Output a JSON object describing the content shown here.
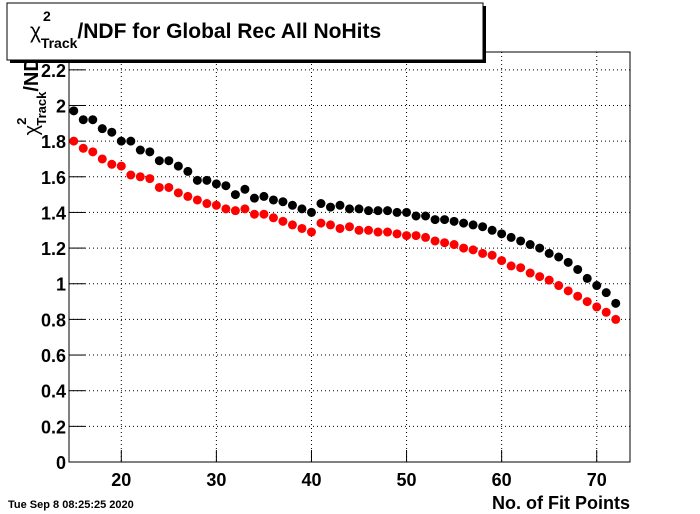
{
  "chart_data": {
    "type": "scatter",
    "title": {
      "symbol": "χ",
      "sup": "2",
      "sub": "Track",
      "text": "/NDF for Global Rec All NoHits"
    },
    "y_label": {
      "symbol": "χ",
      "sup": "2",
      "sub": "Track",
      "text": "/NDF"
    },
    "x_label": "No. of Fit Points",
    "timestamp": "Tue Sep  8 08:25:25 2020",
    "x": [
      15,
      16,
      17,
      18,
      19,
      20,
      21,
      22,
      23,
      24,
      25,
      26,
      27,
      28,
      29,
      30,
      31,
      32,
      33,
      34,
      35,
      36,
      37,
      38,
      39,
      40,
      41,
      42,
      43,
      44,
      45,
      46,
      47,
      48,
      49,
      50,
      51,
      52,
      53,
      54,
      55,
      56,
      57,
      58,
      59,
      60,
      61,
      62,
      63,
      64,
      65,
      66,
      67,
      68,
      69,
      70,
      71,
      72
    ],
    "series": [
      {
        "color": "#000000",
        "values": [
          1.97,
          1.92,
          1.92,
          1.87,
          1.85,
          1.8,
          1.8,
          1.75,
          1.74,
          1.69,
          1.69,
          1.66,
          1.63,
          1.58,
          1.58,
          1.56,
          1.55,
          1.5,
          1.53,
          1.48,
          1.49,
          1.47,
          1.46,
          1.44,
          1.42,
          1.4,
          1.45,
          1.43,
          1.44,
          1.42,
          1.42,
          1.41,
          1.41,
          1.41,
          1.4,
          1.4,
          1.38,
          1.38,
          1.36,
          1.36,
          1.35,
          1.34,
          1.33,
          1.32,
          1.3,
          1.28,
          1.26,
          1.24,
          1.22,
          1.2,
          1.17,
          1.15,
          1.12,
          1.08,
          1.03,
          0.99,
          0.95,
          0.89
        ]
      },
      {
        "color": "#ff0000",
        "values": [
          1.8,
          1.76,
          1.74,
          1.7,
          1.67,
          1.66,
          1.61,
          1.6,
          1.59,
          1.54,
          1.54,
          1.51,
          1.49,
          1.47,
          1.45,
          1.44,
          1.42,
          1.41,
          1.42,
          1.39,
          1.39,
          1.37,
          1.35,
          1.33,
          1.31,
          1.29,
          1.34,
          1.33,
          1.31,
          1.32,
          1.3,
          1.3,
          1.29,
          1.29,
          1.28,
          1.27,
          1.27,
          1.26,
          1.24,
          1.23,
          1.22,
          1.2,
          1.19,
          1.17,
          1.16,
          1.13,
          1.1,
          1.09,
          1.06,
          1.04,
          1.02,
          0.99,
          0.96,
          0.93,
          0.9,
          0.87,
          0.84,
          0.8
        ]
      }
    ],
    "xlim": [
      14.5,
      73.5
    ],
    "ylim": [
      0,
      2.3
    ],
    "xticks": [
      20,
      30,
      40,
      50,
      60,
      70
    ],
    "yticks": [
      0,
      0.2,
      0.4,
      0.6,
      0.8,
      1,
      1.2,
      1.4,
      1.6,
      1.8,
      2,
      2.2
    ],
    "grid": true
  }
}
